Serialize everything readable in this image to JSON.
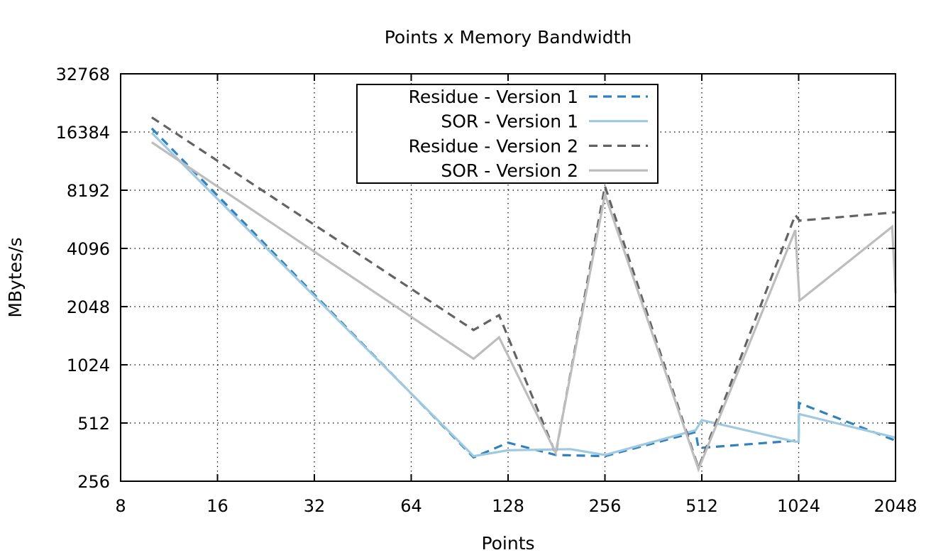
{
  "chart_data": {
    "type": "line",
    "title": "Points x Memory Bandwidth",
    "xlabel": "Points",
    "ylabel": "MBytes/s",
    "x_scale": "log2",
    "y_scale": "log2",
    "xlim": [
      8,
      2048
    ],
    "ylim": [
      256,
      32768
    ],
    "x_ticks": [
      "8",
      "16",
      "32",
      "64",
      "128",
      "256",
      "512",
      "1024",
      "2048"
    ],
    "x_tick_values": [
      8,
      16,
      32,
      64,
      128,
      256,
      512,
      1024,
      2048
    ],
    "y_ticks": [
      "256",
      "512",
      "1024",
      "2048",
      "4096",
      "8192",
      "16384",
      "32768"
    ],
    "y_tick_values": [
      256,
      512,
      1024,
      2048,
      4096,
      8192,
      16384,
      32768
    ],
    "grid": true,
    "legend_position": "top-center",
    "series": [
      {
        "name": "Residue - Version 1",
        "color": "#3181bd",
        "dash": true,
        "points": [
          [
            10,
            17100
          ],
          [
            100,
            340
          ],
          [
            128,
            405
          ],
          [
            180,
            350
          ],
          [
            256,
            345
          ],
          [
            490,
            460
          ],
          [
            500,
            380
          ],
          [
            1000,
            415
          ],
          [
            1024,
            420
          ],
          [
            1026,
            650
          ],
          [
            2048,
            415
          ]
        ]
      },
      {
        "name": "SOR - Version 1",
        "color": "#9ecae1",
        "dash": false,
        "points": [
          [
            10,
            16200
          ],
          [
            100,
            345
          ],
          [
            128,
            370
          ],
          [
            200,
            375
          ],
          [
            256,
            350
          ],
          [
            490,
            470
          ],
          [
            512,
            530
          ],
          [
            1000,
            410
          ],
          [
            1024,
            410
          ],
          [
            1026,
            570
          ],
          [
            2048,
            430
          ]
        ]
      },
      {
        "name": "Residue - Version 2",
        "color": "#636363",
        "dash": true,
        "points": [
          [
            10,
            19500
          ],
          [
            100,
            1550
          ],
          [
            120,
            1850
          ],
          [
            180,
            355
          ],
          [
            256,
            8600
          ],
          [
            500,
            300
          ],
          [
            1000,
            6100
          ],
          [
            1030,
            5700
          ],
          [
            2048,
            6300
          ]
        ]
      },
      {
        "name": "SOR - Version 2",
        "color": "#bdbdbd",
        "dash": false,
        "points": [
          [
            10,
            14500
          ],
          [
            100,
            1100
          ],
          [
            120,
            1420
          ],
          [
            180,
            360
          ],
          [
            256,
            7800
          ],
          [
            500,
            295
          ],
          [
            1000,
            5100
          ],
          [
            1030,
            2200
          ],
          [
            2000,
            5300
          ],
          [
            2048,
            2400
          ]
        ]
      }
    ]
  }
}
